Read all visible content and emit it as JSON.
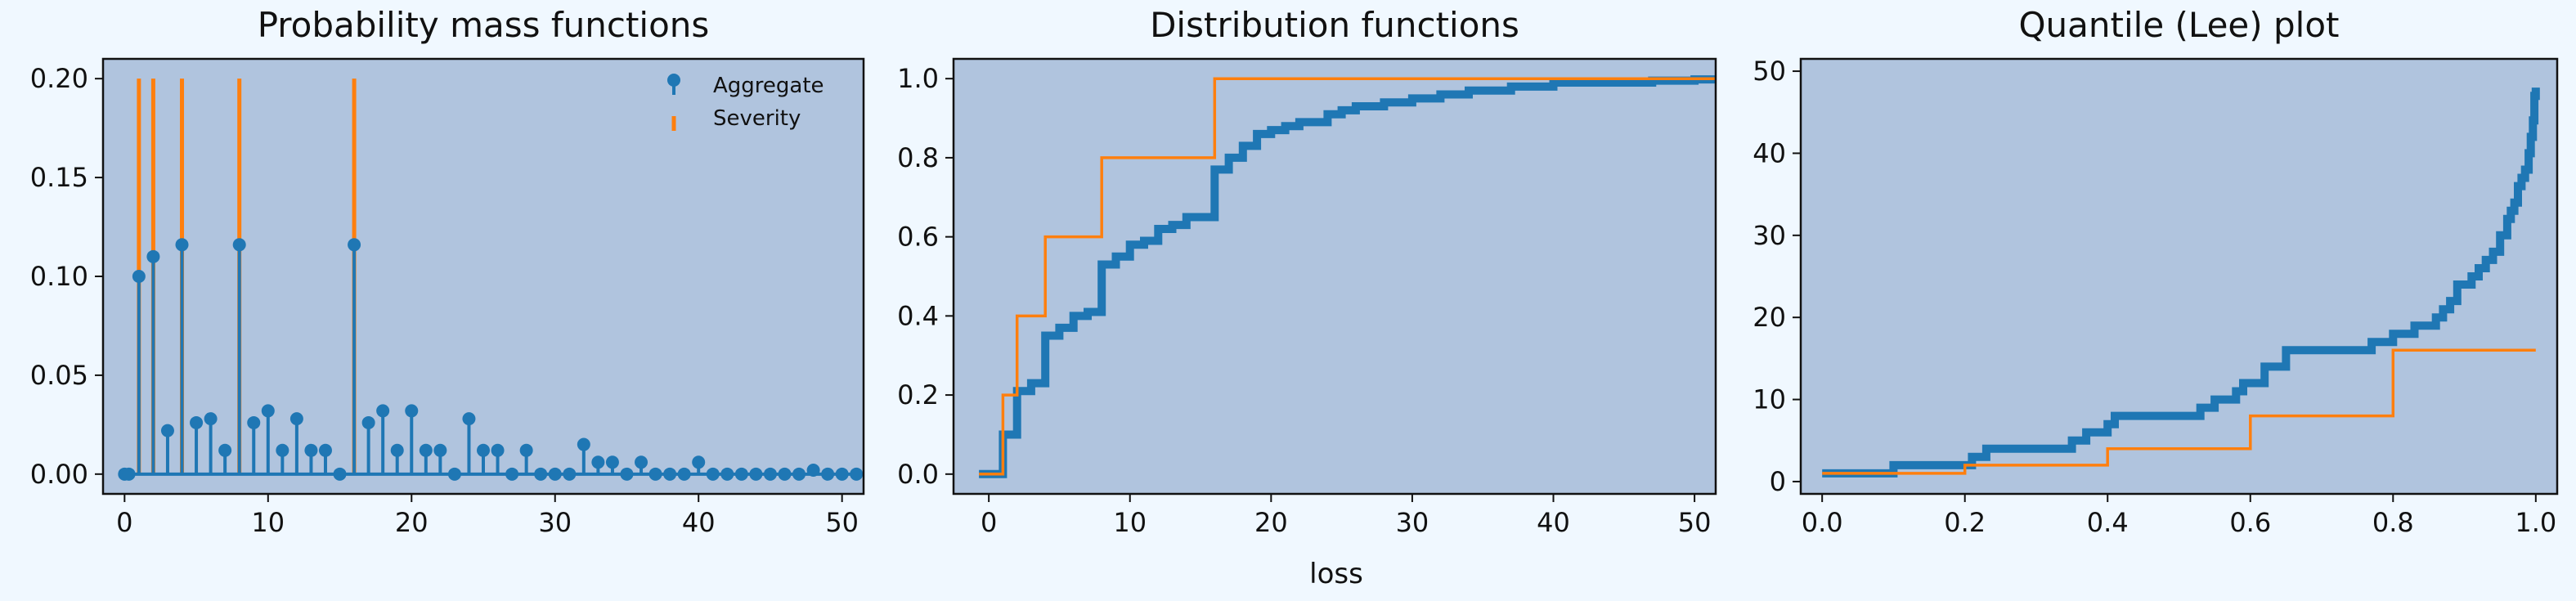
{
  "figure": {
    "background": "#f0f8ff",
    "axes_face": "#b0c4de",
    "xlabel": "loss"
  },
  "colors": {
    "aggregate": "#1f77b4",
    "severity": "#ff7f0e"
  },
  "chart_data": [
    {
      "type": "stem",
      "title": "Probability mass functions",
      "xlim": [
        -1.5,
        51.5
      ],
      "ylim": [
        -0.01,
        0.21
      ],
      "xticks": [
        0,
        10,
        20,
        30,
        40,
        50
      ],
      "yticks": [
        0.0,
        0.05,
        0.1,
        0.15,
        0.2
      ],
      "ytick_labels": [
        "0.00",
        "0.05",
        "0.10",
        "0.15",
        "0.20"
      ],
      "legend": {
        "position": "top-right",
        "entries": [
          "Aggregate",
          "Severity"
        ]
      },
      "series": [
        {
          "name": "Aggregate",
          "style": "stem",
          "x": [
            0,
            0.3,
            1,
            2,
            3,
            4,
            5,
            6,
            7,
            8,
            9,
            10,
            11,
            12,
            13,
            14,
            15,
            16,
            17,
            18,
            19,
            20,
            21,
            22,
            23,
            24,
            25,
            26,
            27,
            28,
            29,
            30,
            31,
            32,
            33,
            34,
            35,
            36,
            37,
            38,
            39,
            40,
            41,
            42,
            43,
            44,
            45,
            46,
            47,
            48,
            49,
            50,
            51
          ],
          "y": [
            0,
            0,
            0.1,
            0.11,
            0.022,
            0.116,
            0.026,
            0.028,
            0.012,
            0.116,
            0.026,
            0.032,
            0.012,
            0.028,
            0.012,
            0.012,
            0,
            0.116,
            0.026,
            0.032,
            0.012,
            0.032,
            0.012,
            0.012,
            0,
            0.028,
            0.012,
            0.012,
            0,
            0.012,
            0,
            0,
            0,
            0.015,
            0.006,
            0.006,
            0,
            0.006,
            0,
            0,
            0,
            0.006,
            0,
            0,
            0,
            0,
            0,
            0,
            0,
            0.002,
            0,
            0,
            0
          ]
        },
        {
          "name": "Severity",
          "style": "vlines",
          "x": [
            1,
            2,
            4,
            8,
            16
          ],
          "y": [
            0.2,
            0.2,
            0.2,
            0.2,
            0.2
          ]
        }
      ]
    },
    {
      "type": "step",
      "title": "Distribution functions",
      "xlim": [
        -2.5,
        51.5
      ],
      "ylim": [
        -0.05,
        1.05
      ],
      "xticks": [
        0,
        10,
        20,
        30,
        40,
        50
      ],
      "yticks": [
        0.0,
        0.2,
        0.4,
        0.6,
        0.8,
        1.0
      ],
      "ytick_labels": [
        "0.0",
        "0.2",
        "0.4",
        "0.6",
        "0.8",
        "1.0"
      ],
      "series": [
        {
          "name": "Aggregate",
          "x": [
            -0.7,
            1,
            2,
            3,
            4,
            5,
            6,
            7,
            8,
            9,
            10,
            11,
            12,
            13,
            14,
            15,
            16,
            17,
            18,
            19,
            20,
            21,
            22,
            23,
            24,
            25,
            26,
            27,
            28,
            29,
            30,
            31,
            32,
            33,
            34,
            35,
            36,
            37,
            38,
            39,
            40,
            41,
            42,
            43,
            44,
            45,
            46,
            47,
            48,
            49,
            50,
            51.5
          ],
          "y": [
            0,
            0.1,
            0.21,
            0.23,
            0.35,
            0.37,
            0.4,
            0.41,
            0.53,
            0.55,
            0.58,
            0.59,
            0.62,
            0.63,
            0.65,
            0.65,
            0.77,
            0.8,
            0.83,
            0.86,
            0.87,
            0.88,
            0.89,
            0.89,
            0.91,
            0.92,
            0.93,
            0.93,
            0.94,
            0.94,
            0.95,
            0.95,
            0.96,
            0.96,
            0.97,
            0.97,
            0.97,
            0.98,
            0.98,
            0.98,
            0.99,
            0.99,
            0.99,
            0.99,
            0.99,
            0.99,
            0.99,
            0.995,
            0.995,
            0.995,
            0.998,
            0.998
          ]
        },
        {
          "name": "Severity",
          "x": [
            -0.7,
            1,
            2,
            4,
            8,
            16,
            51.5
          ],
          "y": [
            0,
            0.2,
            0.4,
            0.6,
            0.8,
            1.0,
            1.0
          ]
        }
      ]
    },
    {
      "type": "step",
      "title": "Quantile (Lee) plot",
      "xlim": [
        -0.03,
        1.03
      ],
      "ylim": [
        -1.5,
        51.5
      ],
      "xticks": [
        0.0,
        0.2,
        0.4,
        0.6,
        0.8,
        1.0
      ],
      "xtick_labels": [
        "0.0",
        "0.2",
        "0.4",
        "0.6",
        "0.8",
        "1.0"
      ],
      "yticks": [
        0,
        10,
        20,
        30,
        40,
        50
      ],
      "series": [
        {
          "name": "Aggregate",
          "x": [
            0,
            0.1,
            0.21,
            0.23,
            0.35,
            0.37,
            0.4,
            0.41,
            0.53,
            0.55,
            0.58,
            0.59,
            0.62,
            0.65,
            0.77,
            0.8,
            0.83,
            0.86,
            0.87,
            0.88,
            0.89,
            0.91,
            0.92,
            0.93,
            0.94,
            0.95,
            0.96,
            0.965,
            0.97,
            0.975,
            0.98,
            0.985,
            0.99,
            0.993,
            0.996,
            0.998,
            1.0
          ],
          "y": [
            1,
            2,
            3,
            4,
            5,
            6,
            7,
            8,
            9,
            10,
            11,
            12,
            14,
            16,
            17,
            18,
            19,
            20,
            21,
            22,
            24,
            25,
            26,
            27,
            28,
            30,
            32,
            33,
            34,
            36,
            37,
            38,
            40,
            42,
            44,
            47,
            48
          ]
        },
        {
          "name": "Severity",
          "x": [
            0,
            0.2,
            0.4,
            0.6,
            0.8,
            1.0
          ],
          "y": [
            1,
            2,
            4,
            8,
            16,
            16
          ]
        }
      ]
    }
  ]
}
